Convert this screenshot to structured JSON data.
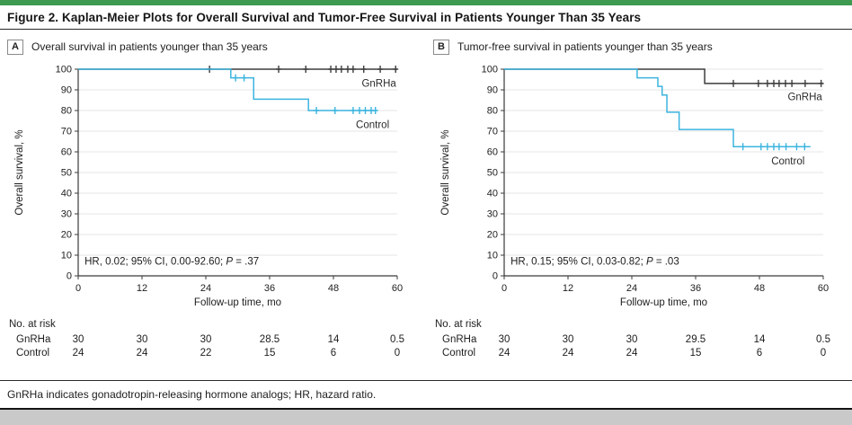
{
  "figure": {
    "title": "Figure 2. Kaplan-Meier Plots for Overall Survival and Tumor-Free Survival in Patients Younger Than 35 Years",
    "footnote": "GnRHa indicates gonadotropin-releasing hormone analogs; HR, hazard ratio.",
    "accent_color": "#3d9a50"
  },
  "chart_data": [
    {
      "type": "line",
      "subtype": "kaplan-meier-step",
      "panel_label": "A",
      "title": "Overall survival in patients younger than 35 years",
      "xlabel": "Follow-up time, mo",
      "ylabel": "Overall survival, %",
      "xlim": [
        0,
        60
      ],
      "ylim": [
        0,
        100
      ],
      "xticks": [
        0,
        12,
        24,
        36,
        48,
        60
      ],
      "yticks": [
        0,
        10,
        20,
        30,
        40,
        50,
        60,
        70,
        80,
        90,
        100
      ],
      "grid": true,
      "legend_position": "labels-inline-right",
      "annotation": {
        "text": "HR, 0.02; 95% CI, 0.00-92.60; P = .37",
        "before_p": "HR, 0.02; 95% CI, 0.00-92.60; ",
        "p": "P",
        "after_p": " = .37",
        "x": 1.2,
        "y": 5.5
      },
      "series": [
        {
          "name": "GnRHa",
          "color": "#3d3d3d",
          "steps": [
            [
              0,
              100
            ]
          ],
          "end": 60,
          "censors": [
            [
              24.7,
              100
            ],
            [
              37.7,
              100
            ],
            [
              42.8,
              100
            ],
            [
              47.5,
              100
            ],
            [
              48.5,
              100
            ],
            [
              49.5,
              100
            ],
            [
              50.7,
              100
            ],
            [
              51.7,
              100
            ],
            [
              53.7,
              100
            ],
            [
              56.8,
              100
            ],
            [
              59.7,
              100
            ]
          ],
          "label": {
            "text": "GnRHa",
            "x": 59.8,
            "y": 91.5
          }
        },
        {
          "name": "Control",
          "color": "#3cb4df",
          "steps": [
            [
              0,
              100
            ],
            [
              28.7,
              95.8
            ],
            [
              33,
              85.5
            ],
            [
              43.3,
              80
            ]
          ],
          "end": 56.2,
          "censors": [
            [
              29.6,
              95.8
            ],
            [
              31.2,
              95.8
            ],
            [
              44.8,
              80
            ],
            [
              48.3,
              80
            ],
            [
              51.7,
              80
            ],
            [
              52.9,
              80
            ],
            [
              54,
              80
            ],
            [
              55.1,
              80
            ],
            [
              55.9,
              80
            ]
          ],
          "label": {
            "text": "Control",
            "x": 58.5,
            "y": 71.5
          }
        }
      ],
      "at_risk": {
        "title": "No. at risk",
        "time_points": [
          0,
          12,
          24,
          36,
          48,
          60
        ],
        "groups": [
          {
            "name": "GnRHa",
            "counts": [
              "30",
              "30",
              "30",
              "28.5",
              "14",
              "0.5"
            ]
          },
          {
            "name": "Control",
            "counts": [
              "24",
              "24",
              "22",
              "15",
              "6",
              "0"
            ]
          }
        ]
      }
    },
    {
      "type": "line",
      "subtype": "kaplan-meier-step",
      "panel_label": "B",
      "title": "Tumor-free survival in patients younger than 35 years",
      "xlabel": "Follow-up time, mo",
      "ylabel": "Overall survival, %",
      "xlim": [
        0,
        60
      ],
      "ylim": [
        0,
        100
      ],
      "xticks": [
        0,
        12,
        24,
        36,
        48,
        60
      ],
      "yticks": [
        0,
        10,
        20,
        30,
        40,
        50,
        60,
        70,
        80,
        90,
        100
      ],
      "grid": true,
      "legend_position": "labels-inline-right",
      "annotation": {
        "text": "HR, 0.15; 95% CI, 0.03-0.82; P = .03",
        "before_p": "HR, 0.15; 95% CI, 0.03-0.82; ",
        "p": "P",
        "after_p": " = .03",
        "x": 1.2,
        "y": 5.5
      },
      "series": [
        {
          "name": "GnRHa",
          "color": "#3d3d3d",
          "steps": [
            [
              0,
              100
            ],
            [
              37.7,
              93.1
            ]
          ],
          "end": 60,
          "censors": [
            [
              43.1,
              93.1
            ],
            [
              47.8,
              93.1
            ],
            [
              49.5,
              93.1
            ],
            [
              50.7,
              93.1
            ],
            [
              51.7,
              93.1
            ],
            [
              52.9,
              93.1
            ],
            [
              54.1,
              93.1
            ],
            [
              56.6,
              93.1
            ],
            [
              59.6,
              93.1
            ]
          ],
          "label": {
            "text": "GnRHa",
            "x": 59.8,
            "y": 85
          }
        },
        {
          "name": "Control",
          "color": "#3cb4df",
          "steps": [
            [
              0,
              100
            ],
            [
              25,
              95.8
            ],
            [
              28.9,
              91.7
            ],
            [
              29.7,
              87.5
            ],
            [
              30.6,
              79.2
            ],
            [
              32.9,
              70.8
            ],
            [
              43.1,
              62.5
            ]
          ],
          "end": 57.6,
          "censors": [
            [
              44.9,
              62.5
            ],
            [
              48.3,
              62.5
            ],
            [
              49.5,
              62.5
            ],
            [
              50.7,
              62.5
            ],
            [
              51.7,
              62.5
            ],
            [
              53,
              62.5
            ],
            [
              55,
              62.5
            ],
            [
              56.5,
              62.5
            ]
          ],
          "label": {
            "text": "Control",
            "x": 56.5,
            "y": 54
          }
        }
      ],
      "at_risk": {
        "title": "No. at risk",
        "time_points": [
          0,
          12,
          24,
          36,
          48,
          60
        ],
        "groups": [
          {
            "name": "GnRHa",
            "counts": [
              "30",
              "30",
              "30",
              "29.5",
              "14",
              "0.5"
            ]
          },
          {
            "name": "Control",
            "counts": [
              "24",
              "24",
              "24",
              "15",
              "6",
              "0"
            ]
          }
        ]
      }
    }
  ]
}
